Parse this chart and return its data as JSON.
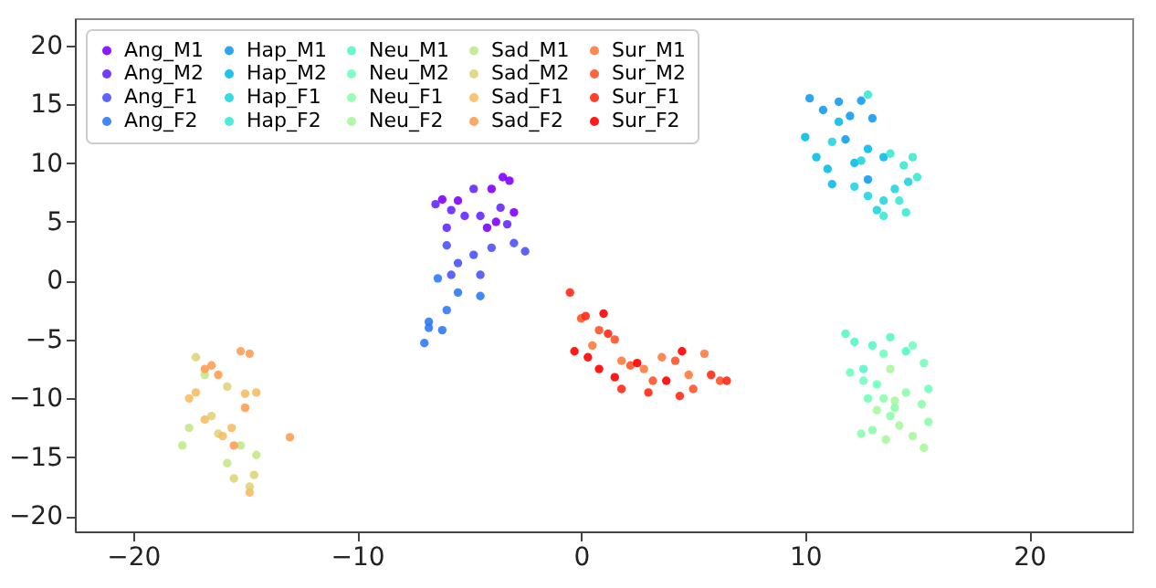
{
  "chart_data": {
    "type": "scatter",
    "xlim": [
      -22.6,
      24.6
    ],
    "ylim": [
      -21.3,
      22.3
    ],
    "xticks": [
      -20,
      -10,
      0,
      10,
      20
    ],
    "yticks": [
      -20,
      -15,
      -10,
      -5,
      0,
      5,
      10,
      15,
      20
    ],
    "grid": false,
    "legend": "top left",
    "marker": "circle",
    "series": [
      {
        "name": "Ang_M1",
        "color": "#8000ff",
        "x": [
          -3.5,
          -3.2,
          -4,
          -3.8,
          -3.0,
          -4.2,
          -5.5,
          -6.2
        ],
        "values": [
          8.8,
          8.5,
          7.8,
          5,
          5.8,
          4.5,
          6.8,
          6.9
        ]
      },
      {
        "name": "Ang_M2",
        "color": "#6529fe",
        "x": [
          -6.5,
          -5.8,
          -6,
          -4.8,
          -4.5,
          -3.6,
          -3.3,
          -5.2
        ],
        "values": [
          6.5,
          6.0,
          4.5,
          7.8,
          5.5,
          6.2,
          4.8,
          5.5
        ]
      },
      {
        "name": "Ang_F1",
        "color": "#4a53fc",
        "x": [
          -6,
          -5.5,
          -4.8,
          -4.5,
          -5.8,
          -4.0,
          -3.0,
          -2.5
        ],
        "values": [
          3,
          1.5,
          2.2,
          0.5,
          0.5,
          2.8,
          3.2,
          2.5
        ]
      },
      {
        "name": "Ang_F2",
        "color": "#2f7af7",
        "x": [
          -6.8,
          -7,
          -6.2,
          -6,
          -5.5,
          -6.4,
          -4.5,
          -6.8
        ],
        "values": [
          -3.5,
          -5.3,
          -4.2,
          -2.5,
          -1.0,
          0.2,
          -1.3,
          -4.0
        ]
      },
      {
        "name": "Hap_M1",
        "color": "#149df1",
        "x": [
          10.2,
          10.8,
          11.5,
          12,
          12.5,
          13,
          11.8,
          12.8
        ],
        "values": [
          15.5,
          14.5,
          15.2,
          14,
          15.3,
          13.8,
          12,
          8.6
        ]
      },
      {
        "name": "Hap_M2",
        "color": "#07bcea",
        "x": [
          10,
          10.5,
          11,
          11.5,
          12.2,
          12.8,
          13.5,
          11.2
        ],
        "values": [
          12.2,
          10.5,
          9.5,
          13.5,
          10,
          11.2,
          10.5,
          8.2
        ]
      },
      {
        "name": "Hap_F1",
        "color": "#22d5e0",
        "x": [
          12.2,
          12.8,
          13.5,
          14,
          13.2,
          12.5,
          11.2,
          14.6
        ],
        "values": [
          8,
          7.2,
          6.8,
          7.8,
          6,
          10.2,
          11.8,
          8.4
        ]
      },
      {
        "name": "Hap_F2",
        "color": "#3ce9d5",
        "x": [
          13.8,
          14.4,
          14.8,
          15,
          14.2,
          13.5,
          14.5,
          12.8
        ],
        "values": [
          10.8,
          9.8,
          10.5,
          8.8,
          6.8,
          5.5,
          5.8,
          15.8
        ]
      },
      {
        "name": "Neu_M1",
        "color": "#57f7c9",
        "x": [
          11.8,
          12.2,
          13,
          13.8,
          14.5,
          12.6
        ],
        "values": [
          -4.5,
          -5.2,
          -5.5,
          -4.8,
          -6,
          -7.5
        ]
      },
      {
        "name": "Neu_M2",
        "color": "#72febc",
        "x": [
          12,
          12.6,
          13.5,
          14.8,
          15.3,
          13.2,
          12.8,
          15.5
        ],
        "values": [
          -7.8,
          -8.5,
          -6.2,
          -5.5,
          -7,
          -8.8,
          -10,
          -9.2
        ]
      },
      {
        "name": "Neu_F1",
        "color": "#8dfead",
        "x": [
          13.5,
          14,
          13.8,
          14.5,
          15.2,
          15.5,
          12.5,
          13
        ],
        "values": [
          -10,
          -10.8,
          -11.5,
          -9.5,
          -10.5,
          -12,
          -13,
          -12.7
        ]
      },
      {
        "name": "Neu_F2",
        "color": "#a8f79d",
        "x": [
          13.2,
          14,
          14.8,
          15.3,
          13.6,
          14.2,
          13.8
        ],
        "values": [
          -11,
          -10.2,
          -13.2,
          -14.2,
          -13.5,
          -12.3,
          -7.5
        ]
      },
      {
        "name": "Sad_M1",
        "color": "#c3e98b",
        "x": [
          -17.8,
          -17.5,
          -16.8,
          -15.8,
          -15.2,
          -14.5
        ],
        "values": [
          -14,
          -12.5,
          -8,
          -15.5,
          -14,
          -14.8
        ]
      },
      {
        "name": "Sad_M2",
        "color": "#ddd579",
        "x": [
          -17.2,
          -16.5,
          -16.2,
          -15.5,
          -14.8,
          -14.6,
          -15.8
        ],
        "values": [
          -6.5,
          -11.5,
          -13,
          -16.8,
          -17.5,
          -16.5,
          -9
        ]
      },
      {
        "name": "Sad_F1",
        "color": "#f8bc66",
        "x": [
          -17.5,
          -17.2,
          -16.8,
          -16,
          -15,
          -14.5,
          -14.8,
          -15.6
        ],
        "values": [
          -10,
          -9.5,
          -11.8,
          -13.2,
          -9.6,
          -9.5,
          -18,
          -12.5
        ]
      },
      {
        "name": "Sad_F2",
        "color": "#ff9d53",
        "x": [
          -16.8,
          -16.5,
          -16.2,
          -15.2,
          -14.8,
          -15.0,
          -13,
          -15.5
        ],
        "values": [
          -7.5,
          -7.2,
          -8,
          -6,
          -6.2,
          -10.8,
          -13.3,
          -14
        ]
      },
      {
        "name": "Sur_M1",
        "color": "#ff7a3e",
        "x": [
          0.5,
          1.8,
          2.8,
          3.6,
          4.8,
          5.5
        ],
        "values": [
          -5.5,
          -6.8,
          -7.5,
          -6.5,
          -8,
          -6.2
        ]
      },
      {
        "name": "Sur_M2",
        "color": "#ff532a",
        "x": [
          0,
          0.8,
          1.5,
          2.2,
          3.2,
          4.2,
          5,
          6.2
        ],
        "values": [
          -3.2,
          -4.2,
          -5,
          -7.2,
          -8.5,
          -6.8,
          -9.2,
          -8.5
        ]
      },
      {
        "name": "Sur_F1",
        "color": "#ff2915",
        "x": [
          -0.5,
          0.2,
          1.2,
          1.8,
          3,
          4.4,
          5.8,
          6.5
        ],
        "values": [
          -1,
          -3,
          -4.5,
          -9.2,
          -9.5,
          -9.8,
          -8,
          -8.5
        ]
      },
      {
        "name": "Sur_F2",
        "color": "#ff0000",
        "x": [
          -0.3,
          0.3,
          0.8,
          1.5,
          2.5,
          3.8,
          4.5,
          1
        ],
        "values": [
          -6,
          -6.5,
          -7.5,
          -8.2,
          -7,
          -8.5,
          -6,
          -2.8
        ]
      }
    ]
  }
}
